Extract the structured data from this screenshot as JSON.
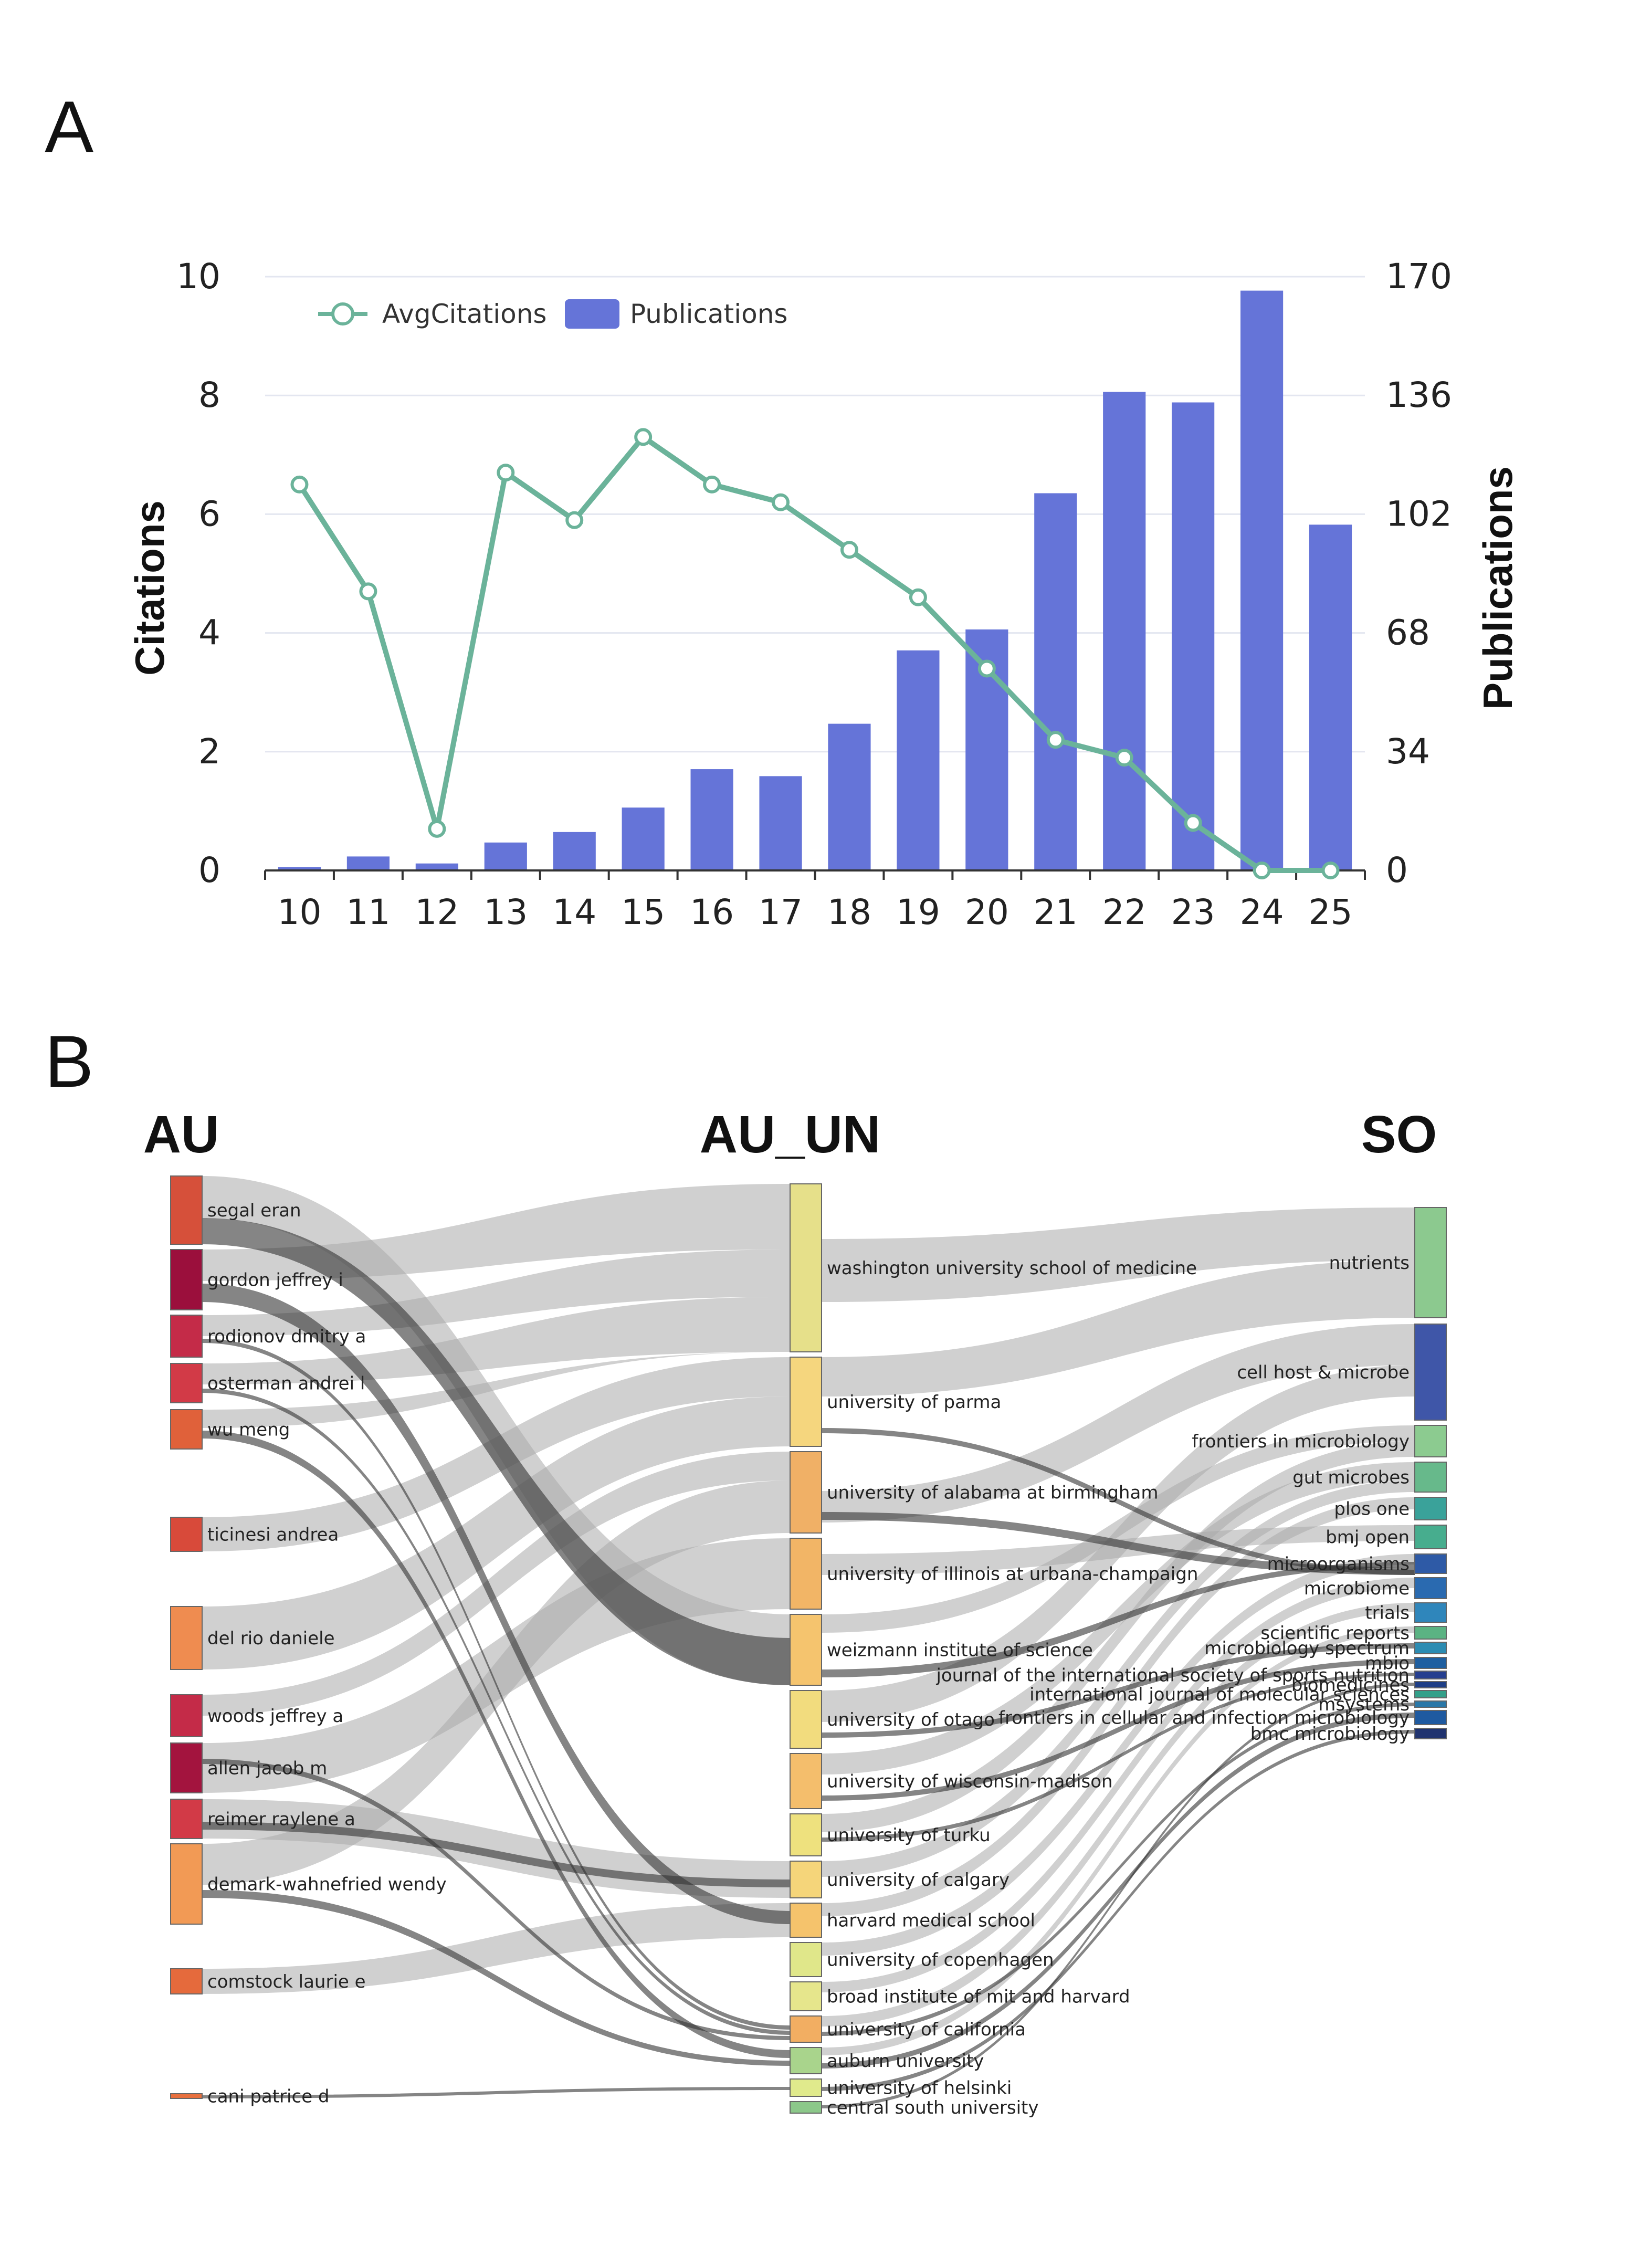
{
  "panel_a_label": "A",
  "panel_b_label": "B",
  "chart_data": [
    {
      "type": "bar",
      "categories": [
        "10",
        "11",
        "12",
        "13",
        "14",
        "15",
        "16",
        "17",
        "18",
        "19",
        "20",
        "21",
        "22",
        "23",
        "24",
        "25"
      ],
      "series": [
        {
          "name": "Publications",
          "type": "bar",
          "axis": "right",
          "color": "#6574d8",
          "values": [
            1,
            4,
            2,
            8,
            11,
            18,
            29,
            27,
            42,
            63,
            69,
            108,
            137,
            134,
            166,
            99
          ]
        },
        {
          "name": "AvgCitations",
          "type": "line",
          "axis": "left",
          "color": "#6bb39a",
          "values": [
            6.5,
            4.7,
            0.7,
            6.7,
            5.9,
            7.3,
            6.5,
            6.2,
            5.4,
            4.6,
            3.4,
            2.2,
            1.9,
            0.8,
            0.0,
            0.0
          ]
        }
      ],
      "ylabel": "Citations",
      "ylabel_right": "Publications",
      "ylim": [
        0,
        10
      ],
      "yticks": [
        "0",
        "2",
        "4",
        "6",
        "8",
        "10"
      ],
      "ylim_right": [
        0,
        170
      ],
      "yticks_right": [
        "0",
        "34",
        "68",
        "102",
        "136",
        "170"
      ],
      "legend": "top-left",
      "grid": true
    },
    {
      "type": "sankey",
      "columns": [
        "AU",
        "AU_UN",
        "SO"
      ],
      "au_nodes": [
        {
          "label": "segal eran",
          "color": "#d6503a"
        },
        {
          "label": "gordon jeffrey i",
          "color": "#9b0f3c"
        },
        {
          "label": "rodionov dmitry a",
          "color": "#c42b48"
        },
        {
          "label": "osterman andrei l",
          "color": "#d23a47"
        },
        {
          "label": "wu meng",
          "color": "#e0613a"
        },
        {
          "label": "ticinesi andrea",
          "color": "#d84a3a"
        },
        {
          "label": "del rio daniele",
          "color": "#ef8c50"
        },
        {
          "label": "woods jeffrey a",
          "color": "#c42b48"
        },
        {
          "label": "allen jacob m",
          "color": "#a3143e"
        },
        {
          "label": "reimer raylene a",
          "color": "#d23a47"
        },
        {
          "label": "demark-wahnefried wendy",
          "color": "#f29a55"
        },
        {
          "label": "comstock laurie e",
          "color": "#e56a3c"
        },
        {
          "label": "cani patrice d",
          "color": "#e8703e"
        }
      ],
      "un_nodes": [
        {
          "label": "washington university school of medicine",
          "color": "#e6e08a"
        },
        {
          "label": "university of parma",
          "color": "#f5d67e"
        },
        {
          "label": "university of alabama at birmingham",
          "color": "#f0b066"
        },
        {
          "label": "university of illinois at urbana-champaign",
          "color": "#f2b566"
        },
        {
          "label": "weizmann institute of science",
          "color": "#f5c46e"
        },
        {
          "label": "university of otago",
          "color": "#f2dc7e"
        },
        {
          "label": "university of wisconsin-madison",
          "color": "#f4be6c"
        },
        {
          "label": "university of turku",
          "color": "#eee17e"
        },
        {
          "label": "university of calgary",
          "color": "#f5d57a"
        },
        {
          "label": "harvard medical school",
          "color": "#f5c36c"
        },
        {
          "label": "university of copenhagen",
          "color": "#e0e78a"
        },
        {
          "label": "broad institute of mit and harvard",
          "color": "#e6e68c"
        },
        {
          "label": "university of california",
          "color": "#f2ae62"
        },
        {
          "label": "auburn university",
          "color": "#a9d48c"
        },
        {
          "label": "university of helsinki",
          "color": "#e0ea8c"
        },
        {
          "label": "central south university",
          "color": "#8cc88a"
        }
      ],
      "so_nodes": [
        {
          "label": "nutrients",
          "color": "#8cc98f"
        },
        {
          "label": "cell host & microbe",
          "color": "#3f56a8"
        },
        {
          "label": "frontiers in microbiology",
          "color": "#8ccb90"
        },
        {
          "label": "gut microbes",
          "color": "#67b98b"
        },
        {
          "label": "plos one",
          "color": "#3aa29a"
        },
        {
          "label": "bmj open",
          "color": "#47ad8e"
        },
        {
          "label": "microorganisms",
          "color": "#2e5aa6"
        },
        {
          "label": "microbiome",
          "color": "#2a6ab0"
        },
        {
          "label": "trials",
          "color": "#2f86bb"
        },
        {
          "label": "scientific reports",
          "color": "#5bb383"
        },
        {
          "label": "microbiology spectrum",
          "color": "#2c8cb2"
        },
        {
          "label": "mbio",
          "color": "#1f5fa0"
        },
        {
          "label": "journal of the international society of sports nutrition",
          "color": "#253e8f"
        },
        {
          "label": "biomedicines",
          "color": "#1e3e86"
        },
        {
          "label": "international journal of molecular sciences",
          "color": "#33a08a"
        },
        {
          "label": "msystems",
          "color": "#2a78a8"
        },
        {
          "label": "frontiers in cellular and infection microbiology",
          "color": "#1f5aa0"
        },
        {
          "label": "bmc microbiology",
          "color": "#20336f"
        }
      ]
    }
  ]
}
